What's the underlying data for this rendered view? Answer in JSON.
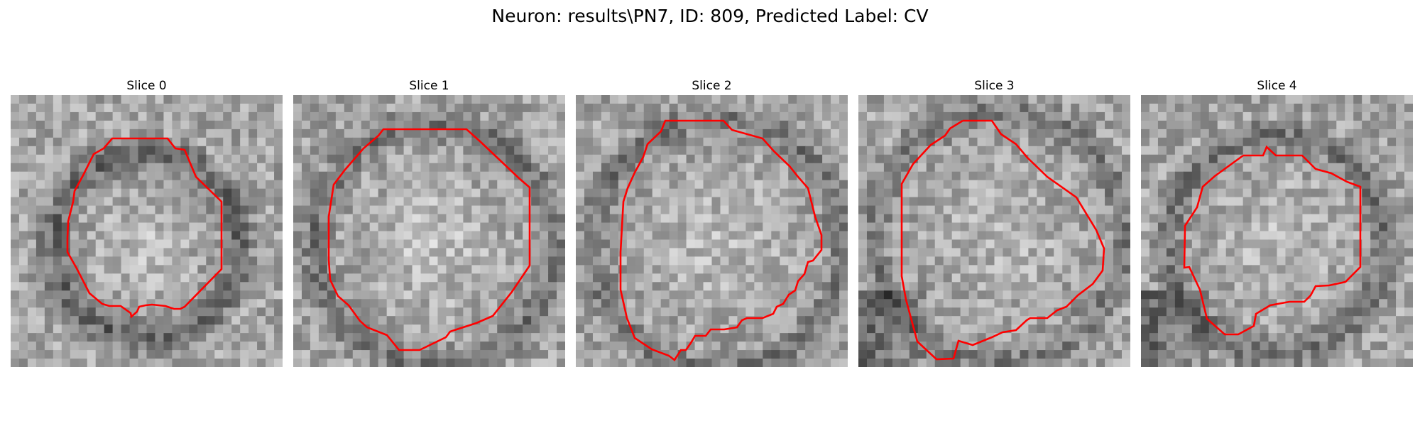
{
  "figure": {
    "title": "Neuron: results\\PN7, ID: 809, Predicted Label: CV"
  },
  "panels": [
    {
      "title": "Slice 0"
    },
    {
      "title": "Slice 1"
    },
    {
      "title": "Slice 2"
    },
    {
      "title": "Slice 3"
    },
    {
      "title": "Slice 4"
    }
  ],
  "colors": {
    "contour": "#ff0000",
    "image_colormap": "gray"
  }
}
